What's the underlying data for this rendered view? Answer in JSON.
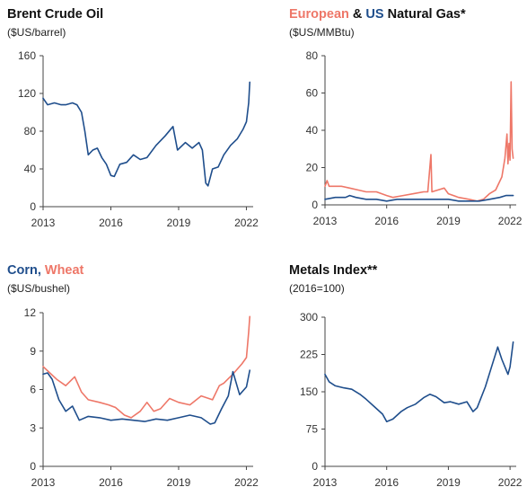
{
  "colors": {
    "navy": "#1f4e8c",
    "salmon": "#ee7768",
    "axis": "#444444",
    "text": "#111111"
  },
  "chart_data": [
    {
      "id": "brent",
      "type": "line",
      "title_parts": [
        {
          "text": "Brent Crude Oil",
          "color": "#111111"
        }
      ],
      "subtitle": "($US/barrel)",
      "ylim": [
        0,
        160
      ],
      "yticks": [
        0,
        40,
        80,
        120,
        160
      ],
      "xlim": [
        2013,
        2022.3
      ],
      "xticks": [
        2013,
        2016,
        2019,
        2022
      ],
      "grid": false,
      "series": [
        {
          "color": "#1f4e8c",
          "x": [
            2013,
            2013.2,
            2013.5,
            2013.8,
            2014,
            2014.3,
            2014.5,
            2014.7,
            2014.85,
            2015,
            2015.2,
            2015.4,
            2015.6,
            2015.8,
            2016,
            2016.15,
            2016.4,
            2016.7,
            2017,
            2017.3,
            2017.6,
            2018,
            2018.4,
            2018.75,
            2018.95,
            2019.3,
            2019.6,
            2019.9,
            2020.05,
            2020.2,
            2020.3,
            2020.5,
            2020.75,
            2021,
            2021.3,
            2021.6,
            2021.85,
            2022,
            2022.1,
            2022.15
          ],
          "y": [
            115,
            108,
            110,
            108,
            108,
            110,
            108,
            100,
            80,
            55,
            60,
            62,
            52,
            45,
            33,
            32,
            45,
            47,
            55,
            50,
            52,
            65,
            75,
            85,
            60,
            68,
            62,
            68,
            60,
            25,
            22,
            40,
            42,
            55,
            65,
            72,
            82,
            90,
            110,
            132
          ]
        }
      ]
    },
    {
      "id": "natgas",
      "type": "line",
      "title_parts": [
        {
          "text": "European",
          "color": "#ee7768"
        },
        {
          "text": " & ",
          "color": "#111111"
        },
        {
          "text": "US",
          "color": "#1f4e8c"
        },
        {
          "text": " Natural Gas*",
          "color": "#111111"
        }
      ],
      "subtitle": "($US/MMBtu)",
      "ylim": [
        0,
        80
      ],
      "yticks": [
        0,
        20,
        40,
        60,
        80
      ],
      "xlim": [
        2013,
        2022.3
      ],
      "xticks": [
        2013,
        2016,
        2019,
        2022
      ],
      "grid": false,
      "series": [
        {
          "name": "European",
          "color": "#ee7768",
          "x": [
            2013,
            2013.1,
            2013.2,
            2013.4,
            2013.8,
            2014.2,
            2014.6,
            2015,
            2015.5,
            2016,
            2016.3,
            2016.8,
            2017.3,
            2017.8,
            2018,
            2018.15,
            2018.2,
            2018.5,
            2018.8,
            2019,
            2019.5,
            2020,
            2020.4,
            2020.7,
            2021,
            2021.3,
            2021.6,
            2021.75,
            2021.85,
            2021.9,
            2021.95,
            2022.0,
            2022.05,
            2022.1,
            2022.15
          ],
          "y": [
            10,
            13,
            10,
            10,
            10,
            9,
            8,
            7,
            7,
            5,
            4,
            5,
            6,
            7,
            7,
            27,
            7,
            8,
            9,
            6,
            4,
            3,
            2,
            3,
            6,
            8,
            15,
            25,
            38,
            22,
            33,
            24,
            66,
            30,
            25
          ]
        },
        {
          "name": "US",
          "color": "#1f4e8c",
          "x": [
            2013,
            2013.5,
            2014,
            2014.2,
            2014.5,
            2015,
            2015.5,
            2016,
            2016.5,
            2017,
            2017.5,
            2018,
            2018.5,
            2019,
            2019.5,
            2020,
            2020.5,
            2021,
            2021.5,
            2021.8,
            2022,
            2022.15
          ],
          "y": [
            3,
            4,
            4,
            5,
            4,
            3,
            3,
            2,
            3,
            3,
            3,
            3,
            3,
            3,
            2,
            2,
            2,
            3,
            4,
            5,
            5,
            5
          ]
        }
      ]
    },
    {
      "id": "grains",
      "type": "line",
      "title_parts": [
        {
          "text": "Corn,",
          "color": "#1f4e8c"
        },
        {
          "text": " Wheat",
          "color": "#ee7768"
        }
      ],
      "subtitle": "($US/bushel)",
      "ylim": [
        0,
        12
      ],
      "yticks": [
        0,
        3,
        6,
        9,
        12
      ],
      "xlim": [
        2013,
        2022.3
      ],
      "xticks": [
        2013,
        2016,
        2019,
        2022
      ],
      "grid": false,
      "series": [
        {
          "name": "Wheat",
          "color": "#ee7768",
          "x": [
            2013,
            2013.3,
            2013.6,
            2014,
            2014.4,
            2014.7,
            2015,
            2015.5,
            2015.9,
            2016.2,
            2016.6,
            2016.9,
            2017.3,
            2017.6,
            2017.9,
            2018.2,
            2018.6,
            2019,
            2019.5,
            2020,
            2020.5,
            2020.8,
            2021,
            2021.4,
            2021.8,
            2022,
            2022.1,
            2022.15
          ],
          "y": [
            7.8,
            7.3,
            6.8,
            6.3,
            7,
            5.8,
            5.2,
            5,
            4.8,
            4.6,
            4,
            3.8,
            4.3,
            5,
            4.3,
            4.5,
            5.3,
            5,
            4.8,
            5.5,
            5.2,
            6.3,
            6.5,
            7.2,
            8,
            8.5,
            10.5,
            11.7
          ]
        },
        {
          "name": "Corn",
          "color": "#1f4e8c",
          "x": [
            2013,
            2013.2,
            2013.4,
            2013.7,
            2014,
            2014.3,
            2014.6,
            2015,
            2015.5,
            2016,
            2016.5,
            2017,
            2017.5,
            2018,
            2018.5,
            2019,
            2019.5,
            2020,
            2020.4,
            2020.6,
            2020.9,
            2021.2,
            2021.4,
            2021.7,
            2022,
            2022.15
          ],
          "y": [
            7.2,
            7.3,
            6.8,
            5.2,
            4.3,
            4.7,
            3.6,
            3.9,
            3.8,
            3.6,
            3.7,
            3.6,
            3.5,
            3.7,
            3.6,
            3.8,
            4,
            3.8,
            3.3,
            3.4,
            4.5,
            5.5,
            7.4,
            5.6,
            6.2,
            7.5
          ]
        }
      ]
    },
    {
      "id": "metals",
      "type": "line",
      "title_parts": [
        {
          "text": "Metals Index**",
          "color": "#111111"
        }
      ],
      "subtitle": "(2016=100)",
      "ylim": [
        0,
        300
      ],
      "yticks": [
        0,
        75,
        150,
        225,
        300
      ],
      "xlim": [
        2013,
        2022.3
      ],
      "xticks": [
        2013,
        2016,
        2019,
        2022
      ],
      "grid": false,
      "series": [
        {
          "color": "#1f4e8c",
          "x": [
            2013,
            2013.2,
            2013.5,
            2013.9,
            2014.3,
            2014.7,
            2015,
            2015.4,
            2015.8,
            2016,
            2016.3,
            2016.7,
            2017,
            2017.4,
            2017.8,
            2018.1,
            2018.4,
            2018.8,
            2019.1,
            2019.5,
            2019.9,
            2020.2,
            2020.4,
            2020.8,
            2021.1,
            2021.4,
            2021.6,
            2021.9,
            2022,
            2022.15
          ],
          "y": [
            185,
            170,
            162,
            158,
            155,
            145,
            135,
            120,
            105,
            90,
            95,
            110,
            118,
            125,
            138,
            145,
            140,
            128,
            130,
            125,
            130,
            110,
            118,
            160,
            200,
            240,
            215,
            185,
            200,
            250
          ]
        }
      ]
    }
  ]
}
